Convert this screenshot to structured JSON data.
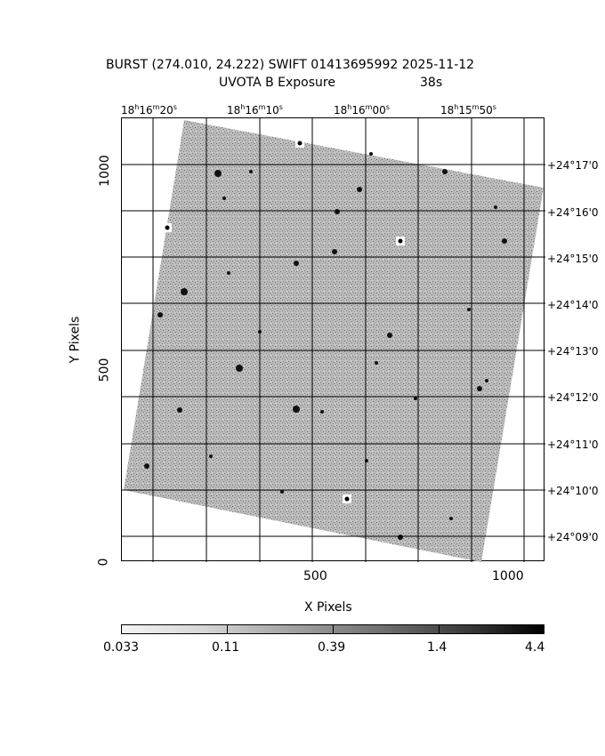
{
  "header": {
    "title": "BURST (274.010, 24.222) SWIFT 01413695992 2025-11-12",
    "subtitle_left": "UVOTA B Exposure",
    "subtitle_right": "38s"
  },
  "axes": {
    "xlabel": "X Pixels",
    "ylabel": "Y Pixels",
    "x_ticks": [
      "500",
      "1000"
    ],
    "y_ticks": [
      "0",
      "500",
      "1000"
    ],
    "ra_ticks": [
      {
        "h": "18",
        "m": "16",
        "s": "20"
      },
      {
        "h": "18",
        "m": "16",
        "s": "10"
      },
      {
        "h": "18",
        "m": "16",
        "s": "00"
      },
      {
        "h": "18",
        "m": "15",
        "s": "50"
      }
    ],
    "dec_ticks": [
      "+24°17'0",
      "+24°16'0",
      "+24°15'0",
      "+24°14'0",
      "+24°13'0",
      "+24°12'0",
      "+24°11'0",
      "+24°10'0",
      "+24°09'0"
    ]
  },
  "colorbar": {
    "labels": [
      "0.033",
      "0.11",
      "0.39",
      "1.4",
      "4.4"
    ]
  }
}
